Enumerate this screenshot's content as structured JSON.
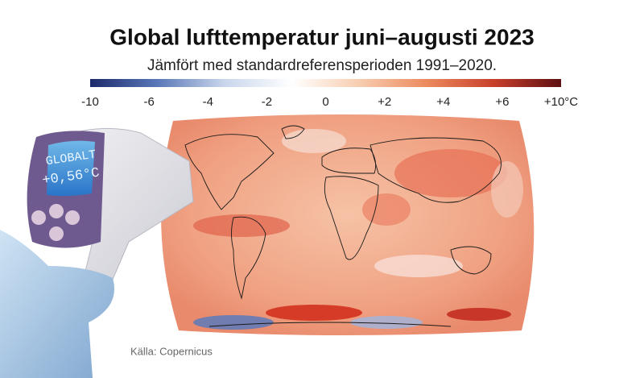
{
  "title": "Global lufttemperatur juni–augusti 2023",
  "subtitle": "Jämfört med standardreferensperioden 1991–2020.",
  "colorbar": {
    "colors": [
      "#1c2a6b",
      "#5a78b8",
      "#c9d6ec",
      "#ffffff",
      "#f8cdb0",
      "#ec8a5e",
      "#c8402a",
      "#5e0f12"
    ],
    "ticks": [
      -10,
      -6,
      -4,
      -2,
      0,
      {
        "value": 2,
        "label": "+2"
      },
      {
        "value": 4,
        "label": "+4"
      },
      {
        "value": 6,
        "label": "+6"
      },
      {
        "value": 10,
        "label": "+10°C"
      }
    ]
  },
  "thermometer": {
    "line1": "GLOBALT",
    "line2": "+0,56°C"
  },
  "source": "Källa: Copernicus"
}
